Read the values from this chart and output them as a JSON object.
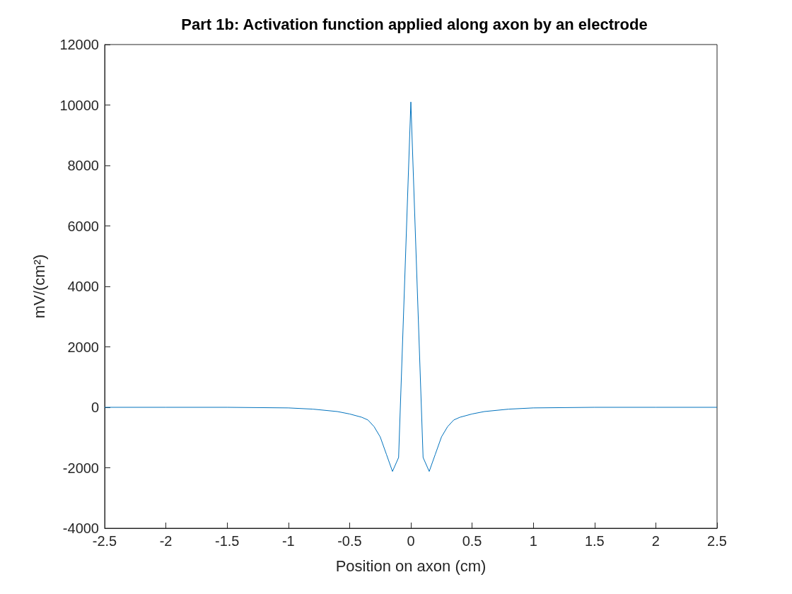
{
  "chart_data": {
    "type": "line",
    "title": "Part 1b: Activation function applied along axon by an electrode",
    "xlabel": "Position on axon (cm)",
    "ylabel": "mV/(cm²)",
    "x": [
      -2.5,
      -2,
      -1.5,
      -1,
      -0.8,
      -0.6,
      -0.5,
      -0.4,
      -0.35,
      -0.3,
      -0.25,
      -0.2,
      -0.15,
      -0.1,
      0,
      0.1,
      0.15,
      0.2,
      0.25,
      0.3,
      0.35,
      0.4,
      0.5,
      0.6,
      0.8,
      1,
      1.5,
      2,
      2.5
    ],
    "series": [
      {
        "color": "#0072bd",
        "values": [
          0,
          0,
          0,
          -20,
          -60,
          -140,
          -220,
          -330,
          -420,
          -640,
          -980,
          -1550,
          -2120,
          -1660,
          10100,
          -1660,
          -2120,
          -1550,
          -980,
          -640,
          -420,
          -330,
          -220,
          -140,
          -60,
          -20,
          0,
          0,
          0
        ]
      }
    ],
    "xlim": [
      -2.5,
      2.5
    ],
    "xticks": [
      -2.5,
      -2,
      -1.5,
      -1,
      -0.5,
      0,
      0.5,
      1,
      1.5,
      2,
      2.5
    ],
    "ylim": [
      -4000,
      12000
    ],
    "yticks": [
      -4000,
      -2000,
      0,
      2000,
      4000,
      6000,
      8000,
      10000,
      12000
    ],
    "grid": false,
    "marker": "none",
    "line_style": "solid"
  }
}
